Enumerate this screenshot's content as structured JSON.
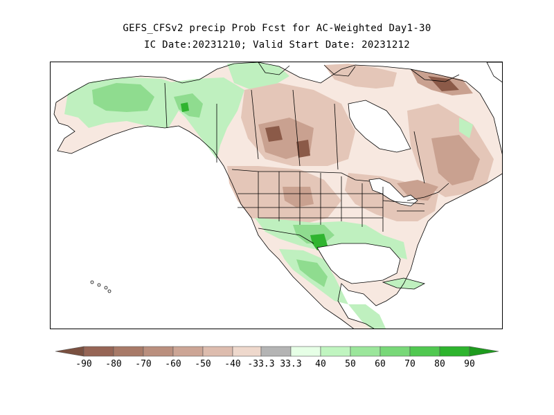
{
  "title": {
    "line1": "GEFS_CFSv2 precip Prob Fcst for AC-Weighted Day1-30",
    "line2": "IC Date:20231210; Valid Start Date: 20231212"
  },
  "colorbar": {
    "labels": [
      "-90",
      "-80",
      "-70",
      "-60",
      "-50",
      "-40",
      "-33.3",
      "33.3",
      "40",
      "50",
      "60",
      "70",
      "80",
      "90"
    ],
    "colors": [
      "#7a5040",
      "#966555",
      "#a87a68",
      "#ba8f7e",
      "#cca595",
      "#ddbcae",
      "#eed8cc",
      "#b4b4b4",
      "#e6ffe6",
      "#c0f5c0",
      "#9be69b",
      "#78d878",
      "#50c850",
      "#2db42d",
      "#1e9b1e"
    ]
  },
  "map": {
    "region": "North America",
    "colors": {
      "land_neutral": "#f7e8e0",
      "brown_light": "#e4c6b8",
      "brown_mid": "#c9a190",
      "brown_dark": "#8b5a48",
      "green_light": "#bff0bf",
      "green_mid": "#8fdc8f",
      "green_dark": "#2fb42f",
      "outline": "#000000"
    }
  }
}
